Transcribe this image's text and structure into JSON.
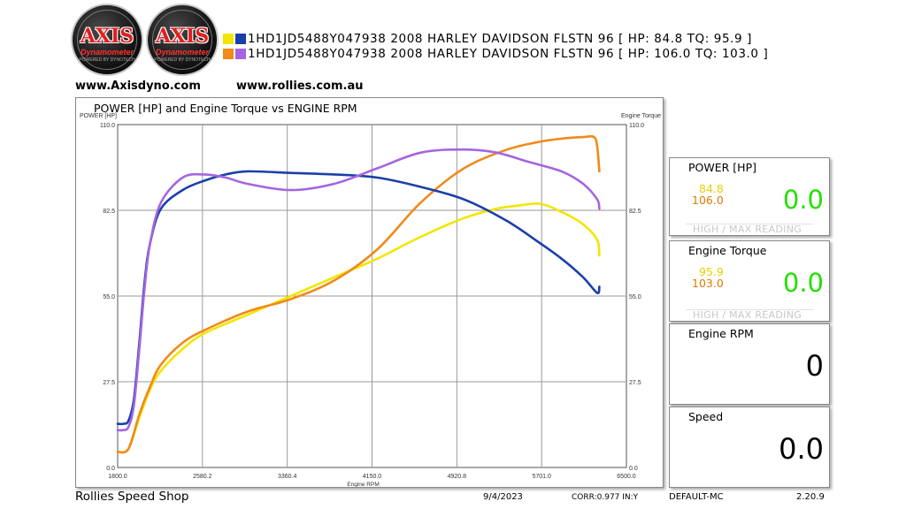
{
  "logos": [
    {
      "word": "AXIS",
      "sub": "Dynamometer",
      "tag": "POWERED BY DYNOTECH"
    },
    {
      "word": "AXIS",
      "sub": "Dynamometer",
      "tag": "POWERED BY DYNOTECH"
    }
  ],
  "legend": [
    {
      "text": "1HD1JD5488Y047938 2008 HARLEY DAVIDSON FLSTN 96 [ HP: 84.8 TQ: 95.9 ]",
      "colors": [
        "#f2e600",
        "#1b3fa8"
      ]
    },
    {
      "text": "1HD1JD5488Y047938 2008 HARLEY DAVIDSON FLSTN 96 [ HP: 106.0 TQ: 103.0 ]",
      "colors": [
        "#f08a1a",
        "#a565e0"
      ]
    }
  ],
  "websites": [
    "www.Axisdyno.com",
    "www.rollies.com.au"
  ],
  "chart_data": {
    "type": "line",
    "title": "POWER [HP] and Engine Torque vs ENGINE RPM",
    "ylabel_left": "POWER [HP]",
    "ylabel_right": "Engine Torque",
    "xlabel": "Engine RPM",
    "xlim": [
      1800,
      6500
    ],
    "ylim": [
      0,
      110
    ],
    "x_ticks": [
      "1800.0",
      "2580.2",
      "3360.4",
      "4150.0",
      "4920.8",
      "5701.0",
      "6500.0"
    ],
    "y_ticks": [
      "0.0",
      "27.5",
      "55.0",
      "82.5",
      "110.0"
    ],
    "grid": true,
    "series": [
      {
        "color": "#f2e600",
        "rpm": [
          1800,
          1900,
          2000,
          2100,
          2200,
          2400,
          2600,
          3000,
          3400,
          3800,
          4200,
          4600,
          5000,
          5300,
          5500,
          5700,
          5900,
          6100,
          6230,
          6250
        ],
        "values": [
          5,
          6,
          16,
          25,
          31,
          38,
          43,
          49,
          55,
          61,
          67,
          74,
          80,
          83,
          84,
          84.6,
          82,
          78,
          73,
          68
        ]
      },
      {
        "color": "#f08a1a",
        "rpm": [
          1800,
          1900,
          2000,
          2100,
          2200,
          2400,
          2600,
          3000,
          3400,
          3800,
          4200,
          4600,
          5000,
          5400,
          5700,
          5900,
          6100,
          6200,
          6230,
          6250
        ],
        "values": [
          5,
          6,
          17,
          26,
          33,
          40,
          44,
          50,
          54,
          60,
          70,
          85,
          96,
          102,
          104.5,
          105.5,
          106,
          106,
          103,
          95
        ]
      },
      {
        "color": "#1b3fa8",
        "rpm": [
          1800,
          1850,
          1900,
          1950,
          2000,
          2050,
          2100,
          2200,
          2400,
          2600,
          2800,
          3000,
          3400,
          3800,
          4200,
          4600,
          5000,
          5400,
          5700,
          5900,
          6100,
          6230,
          6250
        ],
        "values": [
          14,
          14,
          15,
          22,
          40,
          60,
          72,
          83,
          89,
          92,
          94,
          95,
          94.5,
          94,
          93,
          90,
          86,
          79,
          72,
          67,
          61,
          56,
          58
        ]
      },
      {
        "color": "#a565e0",
        "rpm": [
          1800,
          1850,
          1900,
          1950,
          2000,
          2050,
          2100,
          2200,
          2400,
          2600,
          2800,
          3000,
          3400,
          3800,
          4200,
          4600,
          5000,
          5300,
          5600,
          5900,
          6100,
          6230,
          6250
        ],
        "values": [
          12,
          12,
          13,
          20,
          38,
          58,
          72,
          85,
          93,
          94,
          93,
          91,
          89,
          91,
          96,
          101,
          102,
          101,
          98,
          95,
          91,
          86,
          83
        ]
      }
    ]
  },
  "gauges": {
    "power": {
      "title": "POWER [HP]",
      "max1": "84.8",
      "max2": "106.0",
      "live": "0.0",
      "hint": "HIGH / MAX READING"
    },
    "torque": {
      "title": "Engine Torque",
      "max1": "95.9",
      "max2": "103.0",
      "live": "0.0",
      "hint": "HIGH / MAX READING"
    },
    "rpm": {
      "title": "Engine RPM",
      "live": "0"
    },
    "speed": {
      "title": "Speed",
      "live": "0.0"
    }
  },
  "footer": {
    "shop": "Rollies Speed Shop",
    "date": "9/4/2023",
    "corr": "CORR:0.977 IN:Y",
    "profile": "DEFAULT-MC",
    "version": "2.20.9"
  }
}
